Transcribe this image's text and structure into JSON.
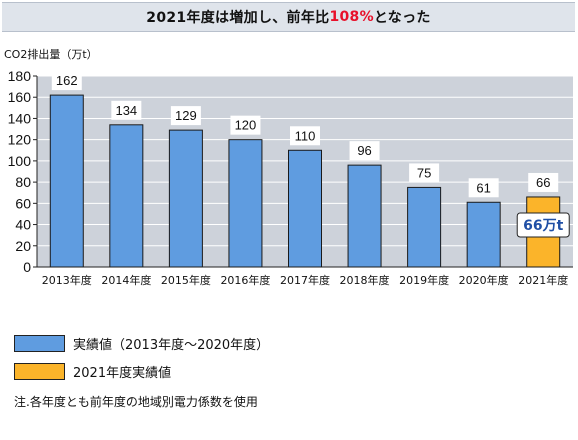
{
  "title": {
    "main": "2021年度は増加し、前年比",
    "highlight": "108%",
    "suffix": "となった"
  },
  "unit_label": "CO2排出量（万t）",
  "colors": {
    "actual": "#5f9ce0",
    "current": "#fbb42a",
    "highlight_text": "#e8102a",
    "callout_text": "#1f4fa5"
  },
  "chart_data": {
    "type": "bar",
    "categories": [
      "2013年度",
      "2014年度",
      "2015年度",
      "2016年度",
      "2017年度",
      "2018年度",
      "2019年度",
      "2020年度",
      "2021年度"
    ],
    "values": [
      162,
      134,
      129,
      120,
      110,
      96,
      75,
      61,
      66
    ],
    "value_labels": [
      "162",
      "134",
      "129",
      "120",
      "110",
      "96",
      "75",
      "61",
      "66"
    ],
    "ylim": [
      0,
      180
    ],
    "yticks": [
      "0",
      "20",
      "40",
      "60",
      "80",
      "100",
      "120",
      "140",
      "160",
      "180"
    ],
    "ylabel": "CO2排出量（万t）",
    "grid": true,
    "callout": "66万t"
  },
  "legend": [
    {
      "label": "実績値（2013年度～2020年度）",
      "color": "#5f9ce0"
    },
    {
      "label": "2021年度実績値",
      "color": "#fbb42a"
    }
  ],
  "note": "注.各年度とも前年度の地域別電力係数を使用"
}
